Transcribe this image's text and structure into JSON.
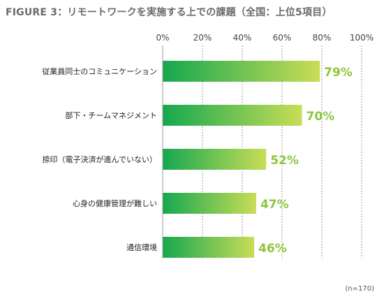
{
  "colors": {
    "bar_start": "#15a84f",
    "bar_end": "#c9dd57",
    "value_label": "#8dc63f",
    "axis": "#9a9a9a",
    "gridline": "#9a9a9a",
    "category_text": "#222222",
    "tick_text": "#444444"
  },
  "chart_data": {
    "type": "bar",
    "orientation": "horizontal",
    "title": "FIGURE 3：リモートワークを実施する上での課題（全国：上位5項目）",
    "categories": [
      "従業員同士のコミュニケーション",
      "部下・チームマネジメント",
      "捺印（電子決済が進んでいない）",
      "心身の健康管理が難しい",
      "通信環境"
    ],
    "values": [
      79,
      70,
      52,
      47,
      46
    ],
    "value_labels": [
      "79%",
      "70%",
      "52%",
      "47%",
      "46%"
    ],
    "xlim": [
      0,
      100
    ],
    "xticks": [
      0,
      20,
      40,
      60,
      80,
      100
    ],
    "xtick_labels": [
      "0%",
      "20%",
      "40%",
      "60%",
      "80%",
      "100%"
    ],
    "tick_position": "top",
    "grid": "vertical dashed",
    "legend": "none",
    "note": "(n=170)"
  }
}
